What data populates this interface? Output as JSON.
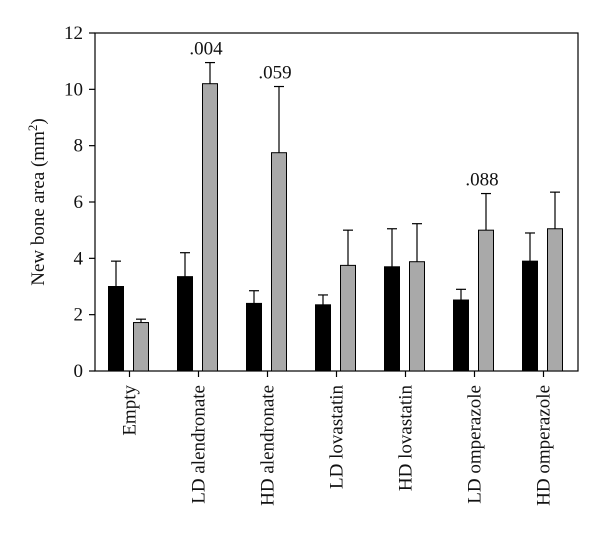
{
  "chart_data": {
    "type": "bar",
    "title": "",
    "xlabel": "",
    "ylabel": "New bone area (mm",
    "ylabel_superscript": "2",
    "ylabel_suffix": ")",
    "ylim": [
      0,
      12
    ],
    "yticks": [
      "0",
      "2",
      "4",
      "6",
      "8",
      "10",
      "12"
    ],
    "grid": false,
    "legend": "none",
    "categories": [
      "Empty",
      "LD alendronate",
      "HD alendronate",
      "LD lovastatin",
      "HD lovastatin",
      "LD omperazole",
      "HD omperazole"
    ],
    "series": [
      {
        "color": "#000000",
        "values": [
          3.0,
          3.35,
          2.4,
          2.35,
          3.7,
          2.52,
          3.9
        ],
        "errors": [
          0.9,
          0.85,
          0.45,
          0.35,
          1.35,
          0.38,
          1.0
        ]
      },
      {
        "color": "#a9a9a9",
        "values": [
          1.72,
          10.2,
          7.75,
          3.75,
          3.88,
          5.0,
          5.05
        ],
        "errors": [
          0.12,
          0.75,
          2.35,
          1.25,
          1.35,
          1.3,
          1.3
        ]
      }
    ],
    "annotations": [
      {
        "category": "LD alendronate",
        "series": 1,
        "text": ".004"
      },
      {
        "category": "HD alendronate",
        "series": 1,
        "text": ".059"
      },
      {
        "category": "LD omperazole",
        "series": 1,
        "text": ".088"
      }
    ]
  }
}
